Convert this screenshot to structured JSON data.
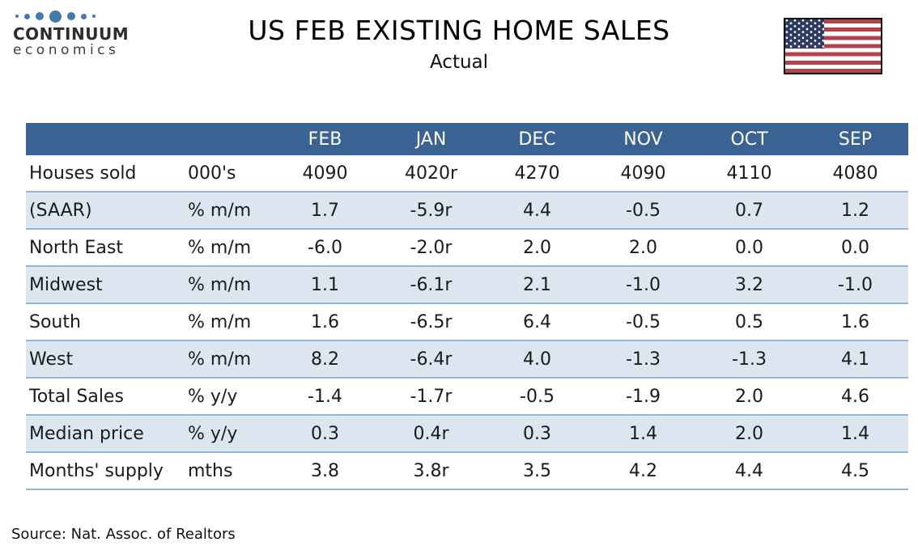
{
  "logo": {
    "name": "CONTINUUM",
    "tagline": "economics",
    "dot_color": "#3f7bb1"
  },
  "chart_data": {
    "type": "table",
    "title": "US FEB EXISTING HOME SALES",
    "subtitle": "Actual",
    "columns": [
      "FEB",
      "JAN",
      "DEC",
      "NOV",
      "OCT",
      "SEP"
    ],
    "rows": [
      {
        "label": "Houses sold",
        "unit": "000's",
        "values": [
          "4090",
          "4020r",
          "4270",
          "4090",
          "4110",
          "4080"
        ]
      },
      {
        "label": "(SAAR)",
        "unit": "% m/m",
        "values": [
          "1.7",
          "-5.9r",
          "4.4",
          "-0.5",
          "0.7",
          "1.2"
        ]
      },
      {
        "label": "North East",
        "unit": "% m/m",
        "values": [
          "-6.0",
          "-2.0r",
          "2.0",
          "2.0",
          "0.0",
          "0.0"
        ]
      },
      {
        "label": "Midwest",
        "unit": "% m/m",
        "values": [
          "1.1",
          "-6.1r",
          "2.1",
          "-1.0",
          "3.2",
          "-1.0"
        ]
      },
      {
        "label": "South",
        "unit": "% m/m",
        "values": [
          "1.6",
          "-6.5r",
          "6.4",
          "-0.5",
          "0.5",
          "1.6"
        ]
      },
      {
        "label": "West",
        "unit": "% m/m",
        "values": [
          "8.2",
          "-6.4r",
          "4.0",
          "-1.3",
          "-1.3",
          "4.1"
        ]
      },
      {
        "label": "Total Sales",
        "unit": "% y/y",
        "values": [
          "-1.4",
          "-1.7r",
          "-0.5",
          "-1.9",
          "2.0",
          "4.6"
        ]
      },
      {
        "label": "Median price",
        "unit": "% y/y",
        "values": [
          "0.3",
          "0.4r",
          "0.3",
          "1.4",
          "2.0",
          "1.4"
        ]
      },
      {
        "label": "Months' supply",
        "unit": "mths",
        "values": [
          "3.8",
          "3.8r",
          "3.5",
          "4.2",
          "4.4",
          "4.5"
        ]
      }
    ],
    "layout": {
      "header_text_color": "#ffffff",
      "zebra": "alternating white / light blue"
    }
  },
  "footer": {
    "source": "Source: Nat. Assoc. of Realtors"
  },
  "colors": {
    "header_bg": "#3a6292",
    "row_alt": "#dce6f1",
    "row_border": "#95b3d7",
    "flag_red": "#b0444e",
    "flag_navy": "#2c3a62",
    "logo_dot": "#3f7bb1"
  }
}
